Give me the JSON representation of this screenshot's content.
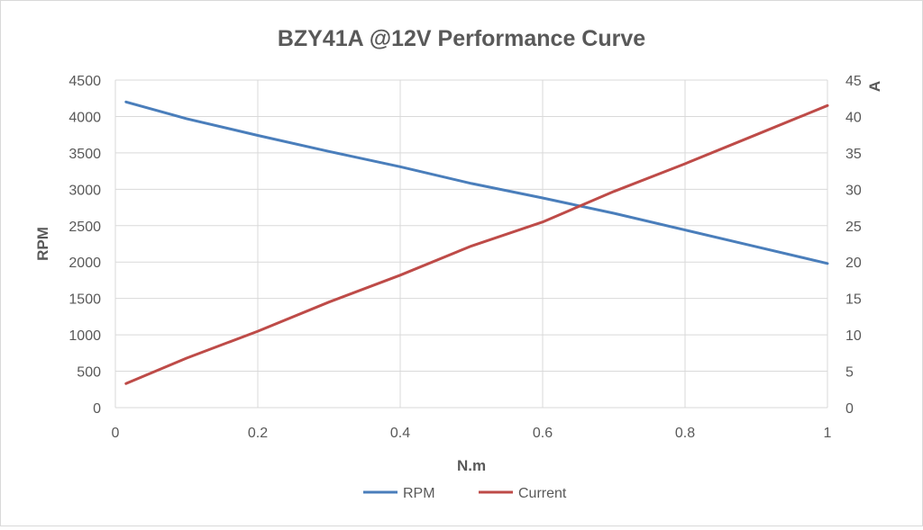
{
  "chart_data": {
    "type": "line",
    "title": "BZY41A @12V Performance Curve",
    "xlabel": "N.m",
    "ylabel": "RPM",
    "y2label": "A",
    "xlim": [
      0,
      1
    ],
    "ylim": [
      0,
      4500
    ],
    "y2lim": [
      0,
      45
    ],
    "x_ticks": [
      "0",
      "0.2",
      "0.4",
      "0.6",
      "0.8",
      "1"
    ],
    "y_ticks": [
      "0",
      "500",
      "1000",
      "1500",
      "2000",
      "2500",
      "3000",
      "3500",
      "4000",
      "4500"
    ],
    "y2_ticks": [
      "0",
      "5",
      "10",
      "15",
      "20",
      "25",
      "30",
      "35",
      "40",
      "45"
    ],
    "grid": true,
    "legend_position": "bottom",
    "series": [
      {
        "name": "RPM",
        "axis": "left",
        "color": "#4a7ebb",
        "x": [
          0.015,
          0.1,
          0.2,
          0.3,
          0.4,
          0.5,
          0.6,
          0.7,
          0.8,
          0.9,
          1.0
        ],
        "values": [
          4200,
          3970,
          3740,
          3520,
          3310,
          3080,
          2880,
          2670,
          2440,
          2210,
          1980
        ]
      },
      {
        "name": "Current",
        "axis": "right",
        "color": "#be4b48",
        "x": [
          0.015,
          0.1,
          0.2,
          0.3,
          0.4,
          0.5,
          0.6,
          0.7,
          0.8,
          0.9,
          1.0
        ],
        "values": [
          3.3,
          6.8,
          10.5,
          14.5,
          18.2,
          22.2,
          25.5,
          29.7,
          33.5,
          37.5,
          41.5
        ]
      }
    ]
  }
}
